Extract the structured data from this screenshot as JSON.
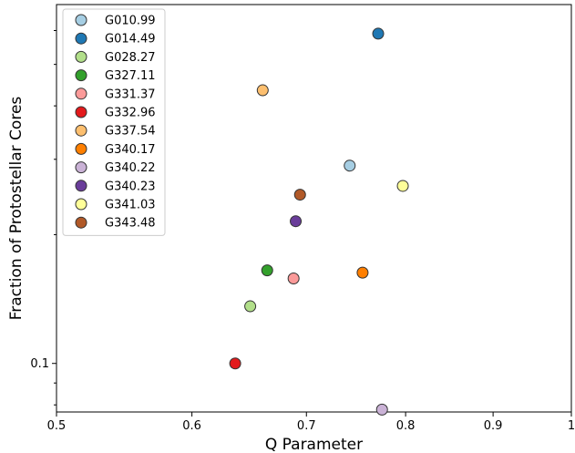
{
  "chart_data": {
    "type": "scatter",
    "title": "",
    "xlabel": "Q Parameter",
    "ylabel": "Fraction of Protostellar Cores",
    "xscale": "log",
    "yscale": "log",
    "xlim": [
      0.5,
      1.0
    ],
    "ylim": [
      0.077,
      0.69
    ],
    "x_ticks": [
      {
        "value": 0.5,
        "label": "0.5"
      },
      {
        "value": 0.6,
        "label": "0.6"
      },
      {
        "value": 0.7,
        "label": "0.7"
      },
      {
        "value": 0.8,
        "label": "0.8"
      },
      {
        "value": 0.9,
        "label": "0.9"
      },
      {
        "value": 1.0,
        "label": "1"
      }
    ],
    "y_ticks": [
      {
        "value": 0.1,
        "label": "0.1"
      }
    ],
    "y_minor_ticks": [
      0.08,
      0.09,
      0.2,
      0.3,
      0.4,
      0.5,
      0.6
    ],
    "legend_position": "upper-left",
    "grid": false,
    "series": [
      {
        "name": "G010.99",
        "color": "#a6cee3",
        "x": 0.742,
        "y": 0.29
      },
      {
        "name": "G014.49",
        "color": "#1f78b4",
        "x": 0.771,
        "y": 0.59
      },
      {
        "name": "G028.27",
        "color": "#b2df8a",
        "x": 0.649,
        "y": 0.136
      },
      {
        "name": "G327.11",
        "color": "#33a02c",
        "x": 0.664,
        "y": 0.165
      },
      {
        "name": "G331.37",
        "color": "#fb9a99",
        "x": 0.688,
        "y": 0.158
      },
      {
        "name": "G332.96",
        "color": "#e31a1c",
        "x": 0.636,
        "y": 0.1
      },
      {
        "name": "G337.54",
        "color": "#fdbf6f",
        "x": 0.66,
        "y": 0.435
      },
      {
        "name": "G340.17",
        "color": "#ff7f00",
        "x": 0.755,
        "y": 0.163
      },
      {
        "name": "G340.22",
        "color": "#cab2d6",
        "x": 0.775,
        "y": 0.078
      },
      {
        "name": "G340.23",
        "color": "#6a3d9a",
        "x": 0.69,
        "y": 0.215
      },
      {
        "name": "G341.03",
        "color": "#ffff99",
        "x": 0.797,
        "y": 0.26
      },
      {
        "name": "G343.48",
        "color": "#b15928",
        "x": 0.694,
        "y": 0.248
      }
    ]
  }
}
